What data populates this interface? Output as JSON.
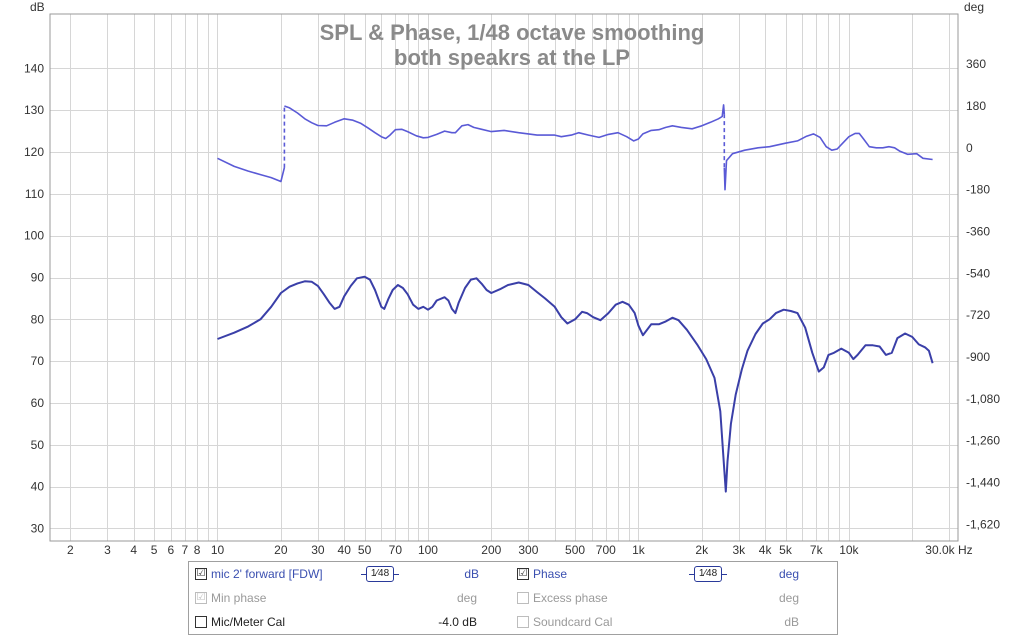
{
  "chart_data": {
    "type": "line",
    "title": "SPL & Phase, 1/48 octave smoothing",
    "subtitle": "both speakrs at the LP",
    "xlabel": "Hz",
    "ylabel_left": "dB",
    "ylabel_right": "deg",
    "xscale": "log",
    "xlim": [
      1.6,
      33000
    ],
    "ylim_left": [
      27,
      153
    ],
    "ylim_right": [
      -1692,
      576
    ],
    "grid": true,
    "x_ticks": [
      {
        "v": 2,
        "t": "2"
      },
      {
        "v": 3,
        "t": "3"
      },
      {
        "v": 4,
        "t": "4"
      },
      {
        "v": 5,
        "t": "5"
      },
      {
        "v": 6,
        "t": "6"
      },
      {
        "v": 7,
        "t": "7"
      },
      {
        "v": 8,
        "t": "8"
      },
      {
        "v": 10,
        "t": "10"
      },
      {
        "v": 20,
        "t": "20"
      },
      {
        "v": 30,
        "t": "30"
      },
      {
        "v": 40,
        "t": "40"
      },
      {
        "v": 50,
        "t": "50"
      },
      {
        "v": 70,
        "t": "70"
      },
      {
        "v": 100,
        "t": "100"
      },
      {
        "v": 200,
        "t": "200"
      },
      {
        "v": 300,
        "t": "300"
      },
      {
        "v": 500,
        "t": "500"
      },
      {
        "v": 700,
        "t": "700"
      },
      {
        "v": 1000,
        "t": "1k"
      },
      {
        "v": 2000,
        "t": "2k"
      },
      {
        "v": 3000,
        "t": "3k"
      },
      {
        "v": 4000,
        "t": "4k"
      },
      {
        "v": 5000,
        "t": "5k"
      },
      {
        "v": 7000,
        "t": "7k"
      },
      {
        "v": 10000,
        "t": "10k"
      },
      {
        "v": 30000,
        "t": "30.0k Hz"
      }
    ],
    "y_left_ticks": [
      {
        "v": 30,
        "t": "30"
      },
      {
        "v": 40,
        "t": "40"
      },
      {
        "v": 50,
        "t": "50"
      },
      {
        "v": 60,
        "t": "60"
      },
      {
        "v": 70,
        "t": "70"
      },
      {
        "v": 80,
        "t": "80"
      },
      {
        "v": 90,
        "t": "90"
      },
      {
        "v": 100,
        "t": "100"
      },
      {
        "v": 110,
        "t": "110"
      },
      {
        "v": 120,
        "t": "120"
      },
      {
        "v": 130,
        "t": "130"
      },
      {
        "v": 140,
        "t": "140"
      }
    ],
    "y_right_ticks": [
      {
        "v": -1620,
        "t": "-1,620"
      },
      {
        "v": -1440,
        "t": "-1,440"
      },
      {
        "v": -1260,
        "t": "-1,260"
      },
      {
        "v": -1080,
        "t": "-1,080"
      },
      {
        "v": -900,
        "t": "-900"
      },
      {
        "v": -720,
        "t": "-720"
      },
      {
        "v": -540,
        "t": "-540"
      },
      {
        "v": -360,
        "t": "-360"
      },
      {
        "v": -180,
        "t": "-180"
      },
      {
        "v": 0,
        "t": "0"
      },
      {
        "v": 180,
        "t": "180"
      },
      {
        "v": 360,
        "t": "360"
      }
    ],
    "series": [
      {
        "name": "mic 2' forward [FDW]",
        "axis": "left",
        "unit": "dB",
        "color": "#3a3fa8",
        "points": [
          [
            10,
            75.3
          ],
          [
            12,
            76.8
          ],
          [
            14,
            78.3
          ],
          [
            16,
            80
          ],
          [
            18,
            83
          ],
          [
            20,
            86.3
          ],
          [
            22,
            87.8
          ],
          [
            24,
            88.6
          ],
          [
            26,
            89.1
          ],
          [
            28,
            89
          ],
          [
            30,
            88
          ],
          [
            32,
            86
          ],
          [
            34,
            84
          ],
          [
            36,
            82.5
          ],
          [
            38,
            83
          ],
          [
            40,
            85.5
          ],
          [
            43,
            88
          ],
          [
            46,
            89.8
          ],
          [
            50,
            90.2
          ],
          [
            53,
            89.5
          ],
          [
            56,
            87
          ],
          [
            60,
            83
          ],
          [
            62,
            82.5
          ],
          [
            65,
            85
          ],
          [
            68,
            87
          ],
          [
            72,
            88.2
          ],
          [
            76,
            87.5
          ],
          [
            80,
            86
          ],
          [
            85,
            83.5
          ],
          [
            90,
            82.5
          ],
          [
            95,
            83
          ],
          [
            100,
            82.3
          ],
          [
            105,
            83
          ],
          [
            110,
            84.5
          ],
          [
            120,
            85.3
          ],
          [
            125,
            84.5
          ],
          [
            130,
            82.5
          ],
          [
            135,
            81.5
          ],
          [
            140,
            84
          ],
          [
            150,
            87.5
          ],
          [
            160,
            89.5
          ],
          [
            170,
            89.8
          ],
          [
            180,
            88.5
          ],
          [
            190,
            87
          ],
          [
            200,
            86.3
          ],
          [
            220,
            87.2
          ],
          [
            240,
            88.2
          ],
          [
            270,
            88.8
          ],
          [
            300,
            88.2
          ],
          [
            330,
            86.5
          ],
          [
            360,
            85
          ],
          [
            400,
            83
          ],
          [
            430,
            80.5
          ],
          [
            460,
            79
          ],
          [
            500,
            80
          ],
          [
            540,
            81.8
          ],
          [
            570,
            81.5
          ],
          [
            610,
            80.5
          ],
          [
            660,
            79.8
          ],
          [
            720,
            81.5
          ],
          [
            780,
            83.5
          ],
          [
            840,
            84.2
          ],
          [
            900,
            83.5
          ],
          [
            960,
            81.5
          ],
          [
            1000,
            78.5
          ],
          [
            1050,
            76.2
          ],
          [
            1100,
            77.5
          ],
          [
            1150,
            78.8
          ],
          [
            1250,
            78.8
          ],
          [
            1350,
            79.5
          ],
          [
            1450,
            80.4
          ],
          [
            1550,
            79.8
          ],
          [
            1700,
            77.5
          ],
          [
            1900,
            74
          ],
          [
            2100,
            70.5
          ],
          [
            2300,
            66
          ],
          [
            2450,
            58
          ],
          [
            2550,
            45
          ],
          [
            2600,
            38.8
          ],
          [
            2650,
            46
          ],
          [
            2750,
            55
          ],
          [
            2900,
            62
          ],
          [
            3100,
            68
          ],
          [
            3300,
            72.5
          ],
          [
            3600,
            76.5
          ],
          [
            3900,
            79
          ],
          [
            4200,
            80
          ],
          [
            4500,
            81.5
          ],
          [
            4900,
            82.3
          ],
          [
            5300,
            82
          ],
          [
            5700,
            81.5
          ],
          [
            6200,
            78
          ],
          [
            6700,
            72
          ],
          [
            7200,
            67.5
          ],
          [
            7600,
            68.5
          ],
          [
            8000,
            71.5
          ],
          [
            8500,
            72
          ],
          [
            9200,
            73
          ],
          [
            10000,
            72
          ],
          [
            10500,
            70.5
          ],
          [
            11000,
            71.5
          ],
          [
            12000,
            73.8
          ],
          [
            13000,
            73.8
          ],
          [
            14000,
            73.5
          ],
          [
            15000,
            71.5
          ],
          [
            16000,
            72
          ],
          [
            17000,
            75.5
          ],
          [
            18500,
            76.6
          ],
          [
            20000,
            75.8
          ],
          [
            21500,
            74
          ],
          [
            23000,
            73.3
          ],
          [
            24000,
            72.5
          ],
          [
            25000,
            69.5
          ]
        ]
      },
      {
        "name": "Phase",
        "axis": "right",
        "unit": "deg",
        "color": "#5a5ad6",
        "points": [
          [
            10,
            -45
          ],
          [
            12,
            -80
          ],
          [
            14,
            -100
          ],
          [
            16,
            -115
          ],
          [
            18,
            -128
          ],
          [
            20,
            -145
          ],
          [
            20.8,
            -85
          ],
          [
            20.8,
            180
          ],
          [
            22,
            172
          ],
          [
            24,
            150
          ],
          [
            26,
            125
          ],
          [
            28,
            108
          ],
          [
            30,
            96
          ],
          [
            33,
            95
          ],
          [
            36,
            110
          ],
          [
            40,
            125
          ],
          [
            44,
            119
          ],
          [
            48,
            105
          ],
          [
            52,
            85
          ],
          [
            56,
            65
          ],
          [
            60,
            48
          ],
          [
            63,
            40
          ],
          [
            66,
            55
          ],
          [
            70,
            78
          ],
          [
            75,
            80
          ],
          [
            80,
            70
          ],
          [
            88,
            52
          ],
          [
            95,
            43
          ],
          [
            100,
            45
          ],
          [
            110,
            58
          ],
          [
            120,
            72
          ],
          [
            130,
            65
          ],
          [
            135,
            65
          ],
          [
            145,
            95
          ],
          [
            155,
            100
          ],
          [
            165,
            88
          ],
          [
            180,
            80
          ],
          [
            200,
            70
          ],
          [
            230,
            75
          ],
          [
            270,
            65
          ],
          [
            330,
            55
          ],
          [
            400,
            55
          ],
          [
            430,
            48
          ],
          [
            480,
            55
          ],
          [
            520,
            65
          ],
          [
            580,
            55
          ],
          [
            650,
            45
          ],
          [
            720,
            58
          ],
          [
            800,
            65
          ],
          [
            880,
            48
          ],
          [
            950,
            30
          ],
          [
            1000,
            38
          ],
          [
            1050,
            60
          ],
          [
            1150,
            75
          ],
          [
            1250,
            78
          ],
          [
            1350,
            88
          ],
          [
            1450,
            95
          ],
          [
            1600,
            88
          ],
          [
            1800,
            82
          ],
          [
            2000,
            95
          ],
          [
            2200,
            110
          ],
          [
            2400,
            125
          ],
          [
            2500,
            135
          ],
          [
            2540,
            185
          ],
          [
            2560,
            145
          ],
          [
            2560,
            -85
          ],
          [
            2580,
            -180
          ],
          [
            2620,
            -55
          ],
          [
            2800,
            -25
          ],
          [
            3200,
            -10
          ],
          [
            3700,
            0
          ],
          [
            4200,
            5
          ],
          [
            5000,
            20
          ],
          [
            5700,
            30
          ],
          [
            6300,
            50
          ],
          [
            6800,
            60
          ],
          [
            7300,
            45
          ],
          [
            7800,
            5
          ],
          [
            8300,
            -10
          ],
          [
            8800,
            -5
          ],
          [
            9300,
            18
          ],
          [
            10000,
            48
          ],
          [
            10700,
            62
          ],
          [
            11200,
            62
          ],
          [
            11700,
            40
          ],
          [
            12500,
            5
          ],
          [
            13500,
            0
          ],
          [
            14500,
            0
          ],
          [
            15500,
            5
          ],
          [
            16500,
            0
          ],
          [
            17500,
            -15
          ],
          [
            19000,
            -28
          ],
          [
            21000,
            -25
          ],
          [
            22500,
            -45
          ],
          [
            25000,
            -50
          ]
        ]
      }
    ]
  },
  "legend": {
    "row1": {
      "left_checked": "☑",
      "left_label": "mic 2' forward [FDW]",
      "left_smoothing": "1⁄48",
      "left_unit": "dB",
      "right_checked": "☑",
      "right_label": "Phase",
      "right_smoothing": "1⁄48",
      "right_unit": "deg"
    },
    "row2": {
      "left_checked": "☑",
      "left_label": "Min phase",
      "left_unit": "deg",
      "right_label": "Excess phase",
      "right_unit": "deg"
    },
    "row3": {
      "left_label": "Mic/Meter Cal",
      "left_value": "-4.0 dB",
      "right_label": "Soundcard Cal",
      "right_unit": "dB"
    }
  }
}
